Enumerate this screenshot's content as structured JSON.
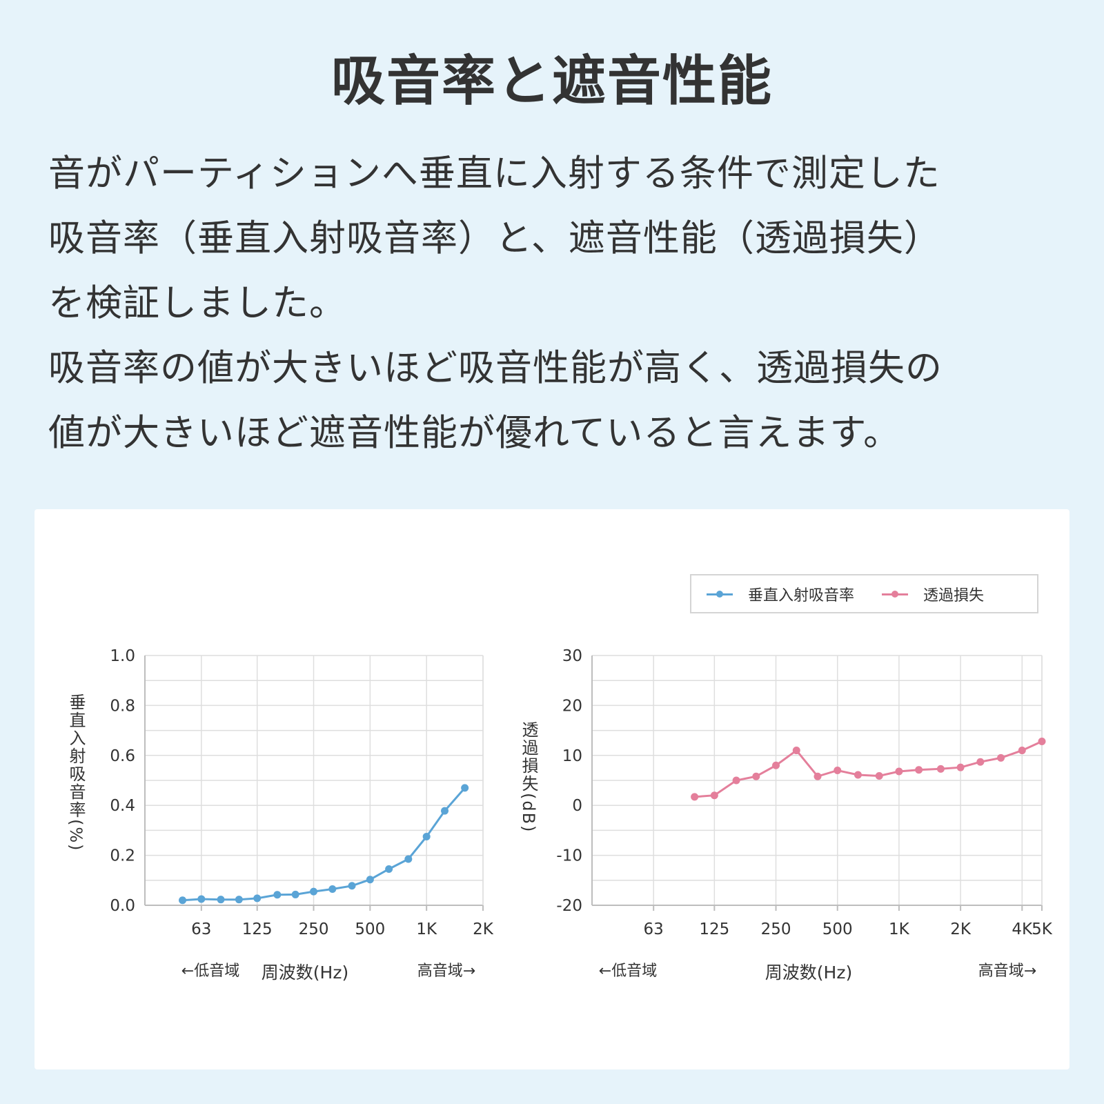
{
  "title": "吸音率と遮音性能",
  "description_lines": [
    "音がパーティションへ垂直に入射する条件で測定した",
    "吸音率（垂直入射吸音率）と、遮音性能（透過損失）",
    "を検証しました。",
    "吸音率の値が大きいほど吸音性能が高く、透過損失の",
    "値が大きいほど遮音性能が優れていると言えます。"
  ],
  "legend": [
    {
      "label": "垂直入射吸音率",
      "color": "#5aa4d6"
    },
    {
      "label": "透過損失",
      "color": "#e47f9b"
    }
  ],
  "chart_data": [
    {
      "type": "line",
      "xscale": "log",
      "xlim": [
        31.5,
        2000
      ],
      "ylim": [
        0,
        1.0
      ],
      "yticks": [
        0.0,
        0.2,
        0.4,
        0.6,
        0.8,
        1.0
      ],
      "ytick_labels": [
        "0.0",
        "0.2",
        "0.4",
        "0.6",
        "0.8",
        "1.0"
      ],
      "xticks": [
        63,
        125,
        250,
        500,
        1000,
        2000
      ],
      "xtick_labels": [
        "63",
        "125",
        "250",
        "500",
        "1K",
        "2K"
      ],
      "ylabel": "垂直入射吸音率(%)",
      "xlabel": "周波数(Hz)",
      "xlabel_left": "←低音域",
      "xlabel_right": "高音域→",
      "grid": true,
      "series": [
        {
          "name": "垂直入射吸音率",
          "color": "#5aa4d6",
          "x": [
            50,
            63,
            80,
            100,
            125,
            160,
            200,
            250,
            315,
            400,
            500,
            630,
            800,
            1000,
            1250,
            1600
          ],
          "y": [
            0.02,
            0.025,
            0.023,
            0.023,
            0.028,
            0.042,
            0.043,
            0.055,
            0.065,
            0.078,
            0.103,
            0.145,
            0.185,
            0.275,
            0.378,
            0.47
          ]
        }
      ]
    },
    {
      "type": "line",
      "xscale": "log",
      "xlim": [
        31.5,
        5000
      ],
      "ylim": [
        -20,
        30
      ],
      "yticks": [
        -20,
        -10,
        0,
        10,
        20,
        30
      ],
      "ytick_labels": [
        "-20",
        "-10",
        "0",
        "10",
        "20",
        "30"
      ],
      "xticks": [
        63,
        125,
        250,
        500,
        1000,
        2000,
        4000,
        5000
      ],
      "xtick_labels": [
        "63",
        "125",
        "250",
        "500",
        "1K",
        "2K",
        "4K",
        "5K"
      ],
      "ylabel": "透過損失(dB)",
      "xlabel": "周波数(Hz)",
      "xlabel_left": "←低音域",
      "xlabel_right": "高音域→",
      "grid": true,
      "series": [
        {
          "name": "透過損失",
          "color": "#e47f9b",
          "x": [
            100,
            125,
            160,
            200,
            250,
            315,
            400,
            500,
            630,
            800,
            1000,
            1250,
            1600,
            2000,
            2500,
            3150,
            4000,
            5000
          ],
          "y": [
            1.7,
            2.0,
            5.0,
            5.8,
            8.0,
            11.0,
            5.8,
            7.0,
            6.1,
            5.9,
            6.8,
            7.1,
            7.3,
            7.6,
            8.7,
            9.5,
            11.0,
            12.8
          ]
        }
      ]
    }
  ]
}
